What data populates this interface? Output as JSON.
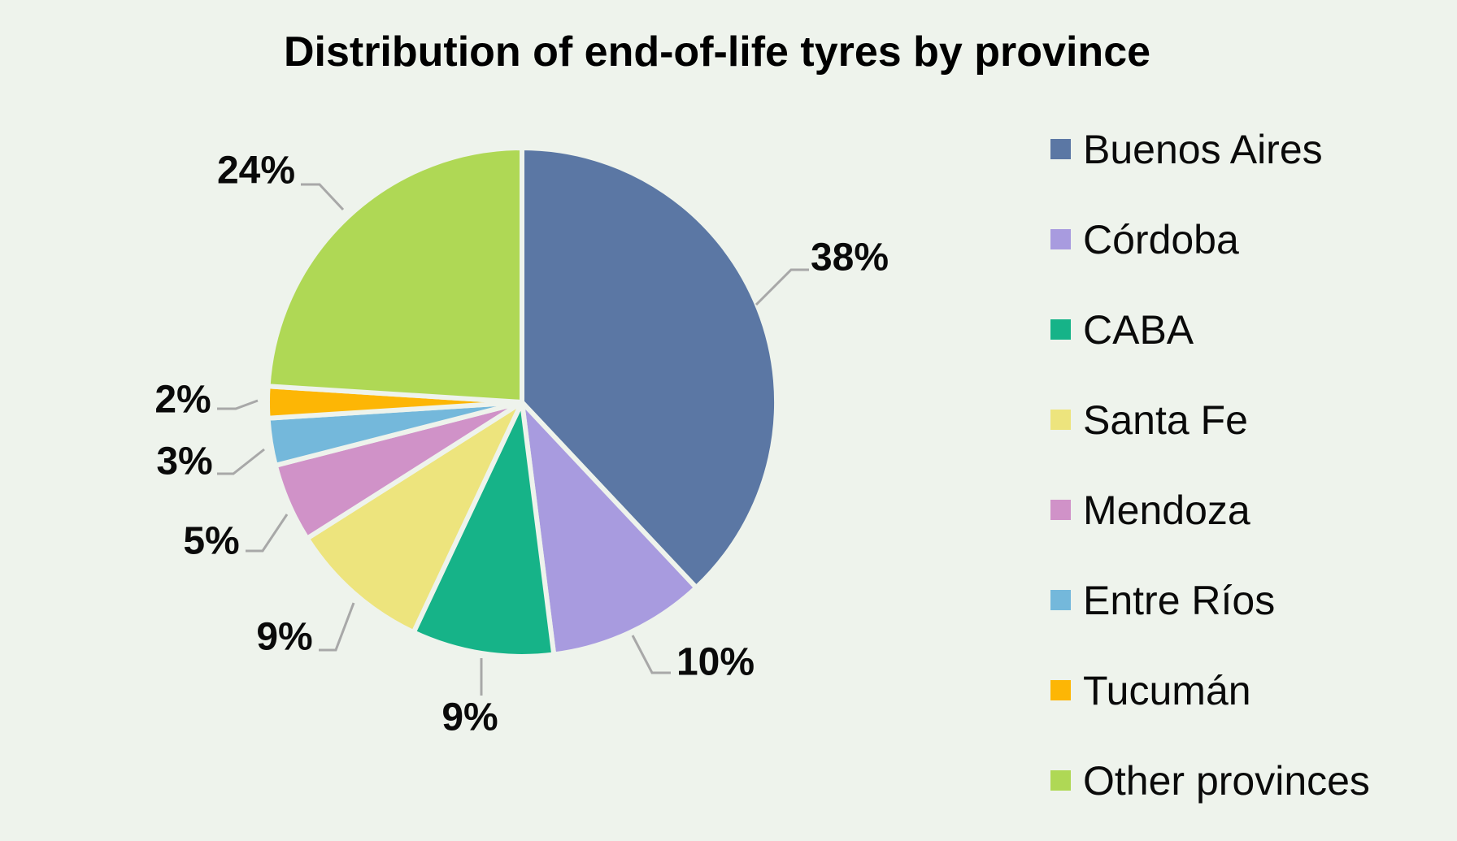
{
  "page": {
    "background_color": "#EEF3EC"
  },
  "chart_data": {
    "type": "pie",
    "title": "Distribution of end-of-life tyres by province",
    "start_angle_deg": 0,
    "direction": "clockwise",
    "legend_position": "right",
    "grid": false,
    "leader_line_color": "#A8A8A8",
    "slices": [
      {
        "label": "Buenos Aires",
        "value_pct": 38,
        "data_label": "38%",
        "color": "#5B77A4"
      },
      {
        "label": "Córdoba",
        "value_pct": 10,
        "data_label": "10%",
        "color": "#A89BDF"
      },
      {
        "label": "CABA",
        "value_pct": 9,
        "data_label": "9%",
        "color": "#16B388"
      },
      {
        "label": "Santa Fe",
        "value_pct": 9,
        "data_label": "9%",
        "color": "#EDE47D"
      },
      {
        "label": "Mendoza",
        "value_pct": 5,
        "data_label": "5%",
        "color": "#D092C8"
      },
      {
        "label": "Entre Ríos",
        "value_pct": 3,
        "data_label": "3%",
        "color": "#74B8DB"
      },
      {
        "label": "Tucumán",
        "value_pct": 2,
        "data_label": "2%",
        "color": "#FDB605"
      },
      {
        "label": "Other provinces",
        "value_pct": 24,
        "data_label": "24%",
        "color": "#AFD855"
      }
    ]
  }
}
